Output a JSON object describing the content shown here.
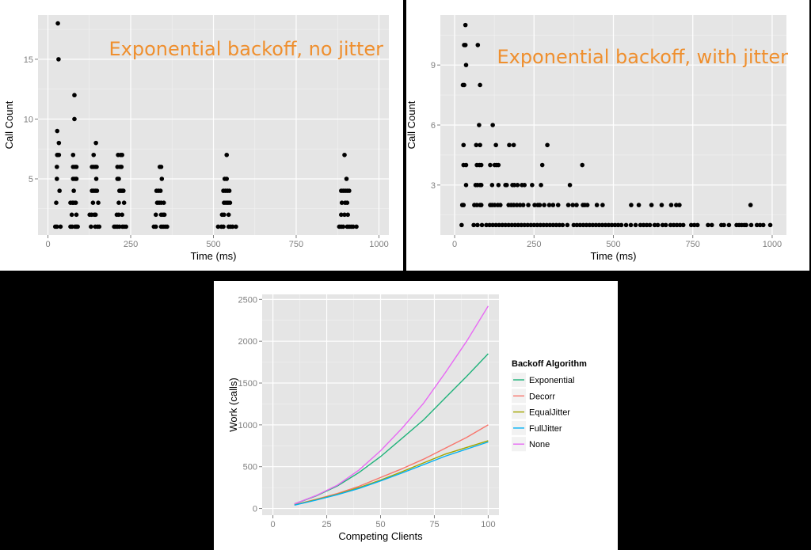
{
  "chart_data": [
    {
      "id": "no_jitter",
      "type": "scatter",
      "title": "Exponential backoff, no jitter",
      "annotation_color": "#ef8f2e",
      "xlabel": "Time (ms)",
      "ylabel": "Call Count",
      "xlim": [
        -30,
        1030
      ],
      "ylim": [
        0.3,
        18.7
      ],
      "xticks": [
        0,
        250,
        500,
        750,
        1000
      ],
      "yticks": [
        5,
        10,
        15
      ],
      "grid": true,
      "points": [
        [
          30,
          18
        ],
        [
          32,
          15
        ],
        [
          28,
          9
        ],
        [
          33,
          8
        ],
        [
          28,
          7
        ],
        [
          33,
          7
        ],
        [
          27,
          6
        ],
        [
          27,
          5
        ],
        [
          35,
          4
        ],
        [
          25,
          3
        ],
        [
          22,
          1
        ],
        [
          27,
          1
        ],
        [
          38,
          1
        ],
        [
          80,
          12
        ],
        [
          80,
          10
        ],
        [
          76,
          7
        ],
        [
          76,
          6
        ],
        [
          82,
          6
        ],
        [
          86,
          6
        ],
        [
          76,
          5
        ],
        [
          82,
          5
        ],
        [
          86,
          5
        ],
        [
          78,
          4
        ],
        [
          68,
          3
        ],
        [
          74,
          3
        ],
        [
          78,
          3
        ],
        [
          84,
          3
        ],
        [
          72,
          2
        ],
        [
          86,
          2
        ],
        [
          68,
          1
        ],
        [
          73,
          1
        ],
        [
          82,
          1
        ],
        [
          86,
          1
        ],
        [
          90,
          1
        ],
        [
          145,
          8
        ],
        [
          138,
          7
        ],
        [
          133,
          6
        ],
        [
          138,
          6
        ],
        [
          143,
          6
        ],
        [
          147,
          6
        ],
        [
          146,
          5
        ],
        [
          133,
          4
        ],
        [
          138,
          4
        ],
        [
          143,
          4
        ],
        [
          148,
          4
        ],
        [
          136,
          3
        ],
        [
          152,
          3
        ],
        [
          126,
          2
        ],
        [
          132,
          2
        ],
        [
          140,
          2
        ],
        [
          144,
          2
        ],
        [
          130,
          1
        ],
        [
          143,
          1
        ],
        [
          150,
          1
        ],
        [
          155,
          1
        ],
        [
          212,
          7
        ],
        [
          220,
          7
        ],
        [
          224,
          7
        ],
        [
          210,
          6
        ],
        [
          218,
          6
        ],
        [
          222,
          6
        ],
        [
          210,
          5
        ],
        [
          214,
          5
        ],
        [
          216,
          4
        ],
        [
          220,
          4
        ],
        [
          224,
          4
        ],
        [
          228,
          4
        ],
        [
          214,
          3
        ],
        [
          230,
          3
        ],
        [
          208,
          2
        ],
        [
          214,
          2
        ],
        [
          224,
          2
        ],
        [
          200,
          1
        ],
        [
          205,
          1
        ],
        [
          210,
          1
        ],
        [
          216,
          1
        ],
        [
          225,
          1
        ],
        [
          230,
          1
        ],
        [
          236,
          1
        ],
        [
          338,
          6
        ],
        [
          342,
          6
        ],
        [
          344,
          5
        ],
        [
          328,
          4
        ],
        [
          334,
          4
        ],
        [
          340,
          4
        ],
        [
          330,
          3
        ],
        [
          336,
          3
        ],
        [
          342,
          3
        ],
        [
          350,
          3
        ],
        [
          326,
          2
        ],
        [
          342,
          2
        ],
        [
          348,
          2
        ],
        [
          352,
          2
        ],
        [
          320,
          1
        ],
        [
          326,
          1
        ],
        [
          342,
          1
        ],
        [
          348,
          1
        ],
        [
          354,
          1
        ],
        [
          360,
          1
        ],
        [
          540,
          7
        ],
        [
          534,
          5
        ],
        [
          540,
          5
        ],
        [
          530,
          4
        ],
        [
          536,
          4
        ],
        [
          542,
          4
        ],
        [
          548,
          4
        ],
        [
          532,
          3
        ],
        [
          538,
          3
        ],
        [
          544,
          3
        ],
        [
          550,
          3
        ],
        [
          526,
          2
        ],
        [
          532,
          2
        ],
        [
          546,
          2
        ],
        [
          514,
          1
        ],
        [
          524,
          1
        ],
        [
          530,
          1
        ],
        [
          546,
          1
        ],
        [
          552,
          1
        ],
        [
          558,
          1
        ],
        [
          568,
          1
        ],
        [
          896,
          7
        ],
        [
          902,
          5
        ],
        [
          886,
          4
        ],
        [
          892,
          4
        ],
        [
          898,
          4
        ],
        [
          904,
          4
        ],
        [
          910,
          4
        ],
        [
          888,
          3
        ],
        [
          898,
          3
        ],
        [
          904,
          3
        ],
        [
          886,
          2
        ],
        [
          896,
          2
        ],
        [
          906,
          2
        ],
        [
          880,
          1
        ],
        [
          886,
          1
        ],
        [
          892,
          1
        ],
        [
          904,
          1
        ],
        [
          910,
          1
        ],
        [
          916,
          1
        ],
        [
          922,
          1
        ],
        [
          932,
          1
        ]
      ]
    },
    {
      "id": "with_jitter",
      "type": "scatter",
      "title": "Exponential backoff, with jitter",
      "annotation_color": "#ef8f2e",
      "xlabel": "Time (ms)",
      "ylabel": "Call Count",
      "xlim": [
        -45,
        1045
      ],
      "ylim": [
        0.5,
        11.5
      ],
      "xticks": [
        0,
        250,
        500,
        750,
        1000
      ],
      "yticks": [
        3,
        6,
        9
      ],
      "grid": true,
      "points": [
        [
          34,
          11
        ],
        [
          30,
          10
        ],
        [
          34,
          10
        ],
        [
          73,
          10
        ],
        [
          36,
          9
        ],
        [
          26,
          8
        ],
        [
          30,
          8
        ],
        [
          80,
          8
        ],
        [
          77,
          6
        ],
        [
          120,
          6
        ],
        [
          28,
          5
        ],
        [
          68,
          5
        ],
        [
          80,
          5
        ],
        [
          130,
          5
        ],
        [
          172,
          5
        ],
        [
          186,
          5
        ],
        [
          292,
          5
        ],
        [
          28,
          4
        ],
        [
          36,
          4
        ],
        [
          70,
          4
        ],
        [
          78,
          4
        ],
        [
          84,
          4
        ],
        [
          112,
          4
        ],
        [
          126,
          4
        ],
        [
          132,
          4
        ],
        [
          138,
          4
        ],
        [
          276,
          4
        ],
        [
          402,
          4
        ],
        [
          36,
          3
        ],
        [
          66,
          3
        ],
        [
          72,
          3
        ],
        [
          80,
          3
        ],
        [
          84,
          3
        ],
        [
          118,
          3
        ],
        [
          138,
          3
        ],
        [
          160,
          3
        ],
        [
          164,
          3
        ],
        [
          182,
          3
        ],
        [
          188,
          3
        ],
        [
          198,
          3
        ],
        [
          212,
          3
        ],
        [
          220,
          3
        ],
        [
          244,
          3
        ],
        [
          272,
          3
        ],
        [
          363,
          3
        ],
        [
          24,
          2
        ],
        [
          28,
          2
        ],
        [
          62,
          2
        ],
        [
          70,
          2
        ],
        [
          80,
          2
        ],
        [
          84,
          2
        ],
        [
          112,
          2
        ],
        [
          118,
          2
        ],
        [
          126,
          2
        ],
        [
          136,
          2
        ],
        [
          144,
          2
        ],
        [
          170,
          2
        ],
        [
          178,
          2
        ],
        [
          186,
          2
        ],
        [
          196,
          2
        ],
        [
          206,
          2
        ],
        [
          216,
          2
        ],
        [
          232,
          2
        ],
        [
          252,
          2
        ],
        [
          262,
          2
        ],
        [
          268,
          2
        ],
        [
          282,
          2
        ],
        [
          298,
          2
        ],
        [
          310,
          2
        ],
        [
          326,
          2
        ],
        [
          358,
          2
        ],
        [
          372,
          2
        ],
        [
          384,
          2
        ],
        [
          404,
          2
        ],
        [
          410,
          2
        ],
        [
          418,
          2
        ],
        [
          448,
          2
        ],
        [
          466,
          2
        ],
        [
          556,
          2
        ],
        [
          580,
          2
        ],
        [
          620,
          2
        ],
        [
          652,
          2
        ],
        [
          682,
          2
        ],
        [
          698,
          2
        ],
        [
          708,
          2
        ],
        [
          932,
          2
        ],
        [
          22,
          1
        ],
        [
          60,
          1
        ],
        [
          72,
          1
        ],
        [
          86,
          1
        ],
        [
          100,
          1
        ],
        [
          110,
          1
        ],
        [
          120,
          1
        ],
        [
          130,
          1
        ],
        [
          140,
          1
        ],
        [
          150,
          1
        ],
        [
          160,
          1
        ],
        [
          170,
          1
        ],
        [
          180,
          1
        ],
        [
          190,
          1
        ],
        [
          200,
          1
        ],
        [
          210,
          1
        ],
        [
          220,
          1
        ],
        [
          230,
          1
        ],
        [
          240,
          1
        ],
        [
          250,
          1
        ],
        [
          260,
          1
        ],
        [
          270,
          1
        ],
        [
          280,
          1
        ],
        [
          290,
          1
        ],
        [
          300,
          1
        ],
        [
          310,
          1
        ],
        [
          320,
          1
        ],
        [
          330,
          1
        ],
        [
          340,
          1
        ],
        [
          355,
          1
        ],
        [
          375,
          1
        ],
        [
          385,
          1
        ],
        [
          395,
          1
        ],
        [
          405,
          1
        ],
        [
          415,
          1
        ],
        [
          425,
          1
        ],
        [
          435,
          1
        ],
        [
          445,
          1
        ],
        [
          455,
          1
        ],
        [
          465,
          1
        ],
        [
          475,
          1
        ],
        [
          485,
          1
        ],
        [
          495,
          1
        ],
        [
          505,
          1
        ],
        [
          515,
          1
        ],
        [
          525,
          1
        ],
        [
          540,
          1
        ],
        [
          555,
          1
        ],
        [
          570,
          1
        ],
        [
          585,
          1
        ],
        [
          595,
          1
        ],
        [
          605,
          1
        ],
        [
          615,
          1
        ],
        [
          630,
          1
        ],
        [
          640,
          1
        ],
        [
          655,
          1
        ],
        [
          665,
          1
        ],
        [
          680,
          1
        ],
        [
          690,
          1
        ],
        [
          700,
          1
        ],
        [
          710,
          1
        ],
        [
          720,
          1
        ],
        [
          745,
          1
        ],
        [
          755,
          1
        ],
        [
          765,
          1
        ],
        [
          798,
          1
        ],
        [
          810,
          1
        ],
        [
          840,
          1
        ],
        [
          848,
          1
        ],
        [
          864,
          1
        ],
        [
          888,
          1
        ],
        [
          896,
          1
        ],
        [
          904,
          1
        ],
        [
          912,
          1
        ],
        [
          918,
          1
        ],
        [
          934,
          1
        ],
        [
          952,
          1
        ],
        [
          962,
          1
        ],
        [
          972,
          1
        ],
        [
          994,
          1
        ]
      ]
    },
    {
      "id": "work",
      "type": "line",
      "title": "",
      "xlabel": "Competing Clients",
      "ylabel": "Work (calls)",
      "xlim": [
        -5,
        105
      ],
      "ylim": [
        -80,
        2560
      ],
      "xticks": [
        0,
        25,
        50,
        75,
        100
      ],
      "yticks": [
        0,
        500,
        1000,
        1500,
        2000,
        2500
      ],
      "grid": true,
      "legend": {
        "title": "Backoff Algorithm",
        "position": "right"
      },
      "x": [
        10,
        20,
        30,
        40,
        50,
        60,
        70,
        80,
        90,
        100
      ],
      "series": [
        {
          "name": "Exponential",
          "color": "#1fb27a",
          "values": [
            55,
            150,
            270,
            430,
            620,
            840,
            1060,
            1320,
            1580,
            1850
          ]
        },
        {
          "name": "Decorr",
          "color": "#f8766d",
          "values": [
            45,
            110,
            180,
            265,
            370,
            475,
            590,
            720,
            850,
            1000
          ]
        },
        {
          "name": "EqualJitter",
          "color": "#a3a500",
          "values": [
            42,
            105,
            170,
            250,
            340,
            440,
            545,
            650,
            730,
            810
          ]
        },
        {
          "name": "FullJitter",
          "color": "#00b0f6",
          "values": [
            40,
            100,
            165,
            240,
            330,
            425,
            525,
            625,
            710,
            795
          ]
        },
        {
          "name": "None",
          "color": "#e76bf3",
          "values": [
            55,
            155,
            280,
            460,
            690,
            960,
            1260,
            1620,
            2000,
            2420
          ]
        }
      ]
    }
  ]
}
